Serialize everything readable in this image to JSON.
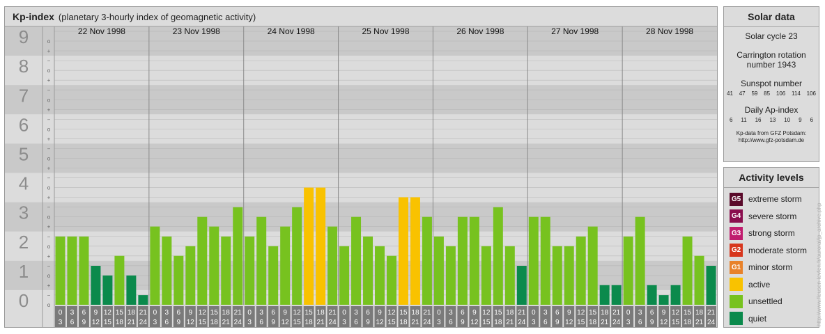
{
  "header": {
    "title": "Kp-index",
    "subtitle": "(planetary 3-hourly index of geomagnetic activity)"
  },
  "chart_data": {
    "type": "bar",
    "title": "Kp-index",
    "subtitle": "(planetary 3-hourly index of geomagnetic activity)",
    "ylim": [
      0,
      9
    ],
    "y_ticks": [
      "0",
      "1",
      "2",
      "3",
      "4",
      "5",
      "6",
      "7",
      "8",
      "9"
    ],
    "y_minor_ticks": [
      "o",
      "+",
      "−",
      "o",
      "+",
      "−",
      "o",
      "+",
      "−",
      "o",
      "+",
      "−",
      "o",
      "+",
      "−",
      "o",
      "+",
      "−",
      "o",
      "+",
      "−",
      "o",
      "+",
      "−",
      "o",
      "+",
      "−",
      "o"
    ],
    "days": [
      "22 Nov 1998",
      "23 Nov 1998",
      "24 Nov 1998",
      "25 Nov 1998",
      "26 Nov 1998",
      "27 Nov 1998",
      "28 Nov 1998"
    ],
    "interval_start": [
      "0",
      "3",
      "6",
      "9",
      "12",
      "15",
      "18",
      "21"
    ],
    "interval_end": [
      "3",
      "6",
      "9",
      "12",
      "15",
      "18",
      "21",
      "24"
    ],
    "values": [
      [
        2.33,
        2.33,
        2.33,
        1.33,
        1.0,
        1.67,
        1.0,
        0.33
      ],
      [
        2.67,
        2.33,
        1.67,
        2.0,
        3.0,
        2.67,
        2.33,
        3.33
      ],
      [
        2.33,
        3.0,
        2.0,
        2.67,
        3.33,
        4.0,
        4.0,
        2.67
      ],
      [
        2.0,
        3.0,
        2.33,
        2.0,
        1.67,
        3.67,
        3.67,
        3.0
      ],
      [
        2.33,
        2.0,
        3.0,
        3.0,
        2.0,
        3.33,
        2.0,
        1.33
      ],
      [
        3.0,
        3.0,
        2.0,
        2.0,
        2.33,
        2.67,
        0.67,
        0.67
      ],
      [
        2.33,
        3.0,
        0.67,
        0.33,
        0.67,
        2.33,
        1.67,
        1.33
      ]
    ],
    "colors": {
      "quiet": "#0b8a4c",
      "unsettled": "#77c21f",
      "active": "#f9c200"
    },
    "grid": true,
    "legend": "right"
  },
  "solar": {
    "title": "Solar data",
    "cycle": "Solar cycle 23",
    "carrington_1": "Carrington rotation",
    "carrington_2": "number 1943",
    "sunspot_label": "Sunspot number",
    "sunspot_values": [
      "41",
      "47",
      "59",
      "85",
      "106",
      "114",
      "106"
    ],
    "ap_label": "Daily Ap-index",
    "ap_values": [
      "6",
      "11",
      "16",
      "13",
      "10",
      "9",
      "6"
    ],
    "credit_1": "Kp-data from GFZ Potsdam:",
    "credit_2": "http://www.gfz-potsdam.de"
  },
  "legend": {
    "title": "Activity levels",
    "items": [
      {
        "code": "G5",
        "label": "extreme storm",
        "color": "#5a0a2a"
      },
      {
        "code": "G4",
        "label": "severe storm",
        "color": "#8a0e4e"
      },
      {
        "code": "G3",
        "label": "strong storm",
        "color": "#c01c6e"
      },
      {
        "code": "G2",
        "label": "moderate storm",
        "color": "#d7361d"
      },
      {
        "code": "G1",
        "label": "minor storm",
        "color": "#e8822a"
      },
      {
        "code": "",
        "label": "active",
        "color": "#f9c200"
      },
      {
        "code": "",
        "label": "unsettled",
        "color": "#77c21f"
      },
      {
        "code": "",
        "label": "quiet",
        "color": "#0b8a4c"
      }
    ]
  },
  "watermark": "http://www.fleusen-levfen.fr/auroral/jp_archive.php"
}
